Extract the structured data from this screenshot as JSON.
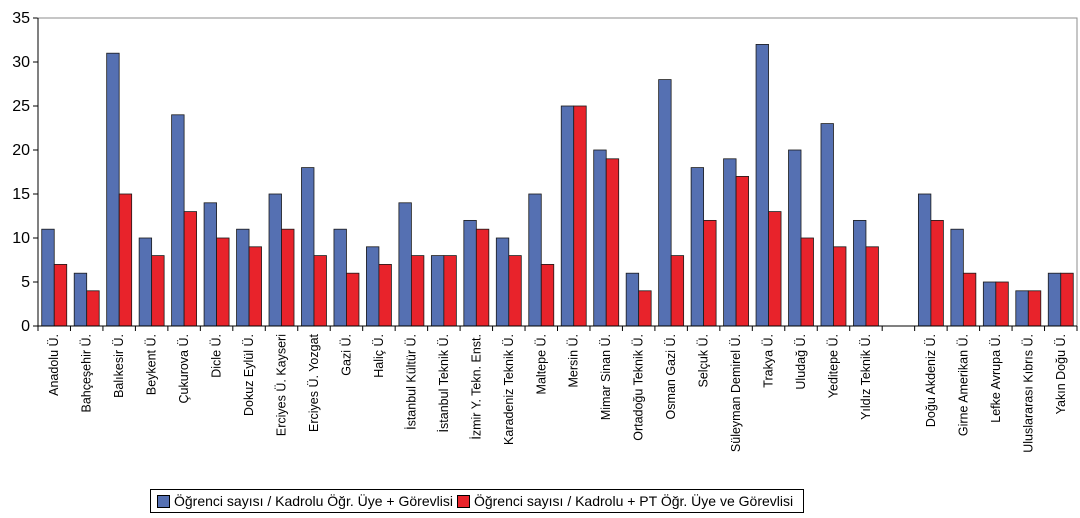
{
  "chart_data": {
    "type": "bar",
    "ylim": [
      0,
      35
    ],
    "yticks": [
      0,
      5,
      10,
      15,
      20,
      25,
      30,
      35
    ],
    "grid": false,
    "legend_position": "bottom",
    "categories": [
      "Anadolu Ü.",
      "Bahçeşehir Ü.",
      "Balıkesir Ü.",
      "Beykent Ü.",
      "Çukurova Ü.",
      "Dicle Ü.",
      "Dokuz Eylül Ü.",
      "Erciyes Ü. Kayseri",
      "Erciyes Ü. Yozgat",
      "Gazi Ü.",
      "Haliç Ü.",
      "İstanbul Kültür Ü.",
      "İstanbul Teknik Ü.",
      "İzmir Y. Tekn. Enst.",
      "Karadeniz Teknik Ü.",
      "Maltepe Ü.",
      "Mersin Ü.",
      "Mimar Sinan Ü.",
      "Ortadoğu Teknik Ü.",
      "Osman Gazi Ü.",
      "Selçuk Ü.",
      "Süleyman Demirel Ü.",
      "Trakya Ü.",
      "Uludağ Ü.",
      "Yeditepe Ü.",
      "Yıldız Teknik Ü.",
      "",
      "Doğu Akdeniz Ü.",
      "Girne Amerikan Ü.",
      "Lefke Avrupa Ü.",
      "Uluslararası Kıbrıs Ü.",
      "Yakın Doğu Ü."
    ],
    "series": [
      {
        "name": "Öğrenci sayısı / Kadrolu Öğr. Üye + Görevlisi",
        "color": "#5570b2",
        "values": [
          11,
          6,
          31,
          10,
          24,
          14,
          11,
          15,
          18,
          11,
          9,
          14,
          8,
          12,
          10,
          15,
          25,
          20,
          6,
          28,
          18,
          19,
          32,
          20,
          23,
          12,
          null,
          15,
          11,
          5,
          4,
          6
        ]
      },
      {
        "name": "Öğrenci sayısı / Kadrolu + PT Öğr. Üye ve Görevlisi",
        "color": "#e8232b",
        "values": [
          7,
          4,
          15,
          8,
          13,
          10,
          9,
          11,
          8,
          6,
          7,
          8,
          8,
          11,
          8,
          7,
          25,
          19,
          4,
          8,
          12,
          17,
          13,
          10,
          9,
          9,
          null,
          12,
          6,
          5,
          4,
          6
        ]
      }
    ]
  }
}
